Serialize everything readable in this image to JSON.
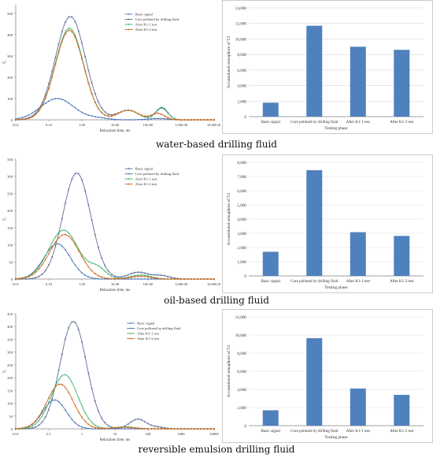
{
  "captions": [
    "water-based drilling fluid",
    "oil-based drilling fluid",
    "reversible emulsion drilling fluid"
  ],
  "colors": {
    "Basic signal": "#4a73b8",
    "Core polluted by drilling fluid": "#5a6f9a",
    "After K1-1 test": "#3cb371",
    "After K1-2 test": "#d2691e",
    "bar": "#4f81bd",
    "grid": "#d9d9d9"
  },
  "chart_data": [
    {
      "type": "line",
      "panel": "row1-left",
      "xlabel": "Relaxation time, ms",
      "ylabel": "T₂",
      "xscale": "log",
      "xlim": [
        0.01,
        10000
      ],
      "xticks": [
        "0.01",
        "0.10",
        "1.00",
        "10.00",
        "100.00",
        "1,000.00",
        "10,000.00"
      ],
      "yticks": [
        "0",
        "100",
        "200",
        "300",
        "400",
        "500"
      ],
      "ylim": [
        0,
        540
      ],
      "legend": "top-center",
      "series": [
        {
          "name": "Basic signal",
          "peaks": [
            {
              "x": 0.18,
              "y": 100,
              "w": 0.5
            },
            {
              "x": 3,
              "y": 8,
              "w": 0.3
            },
            {
              "x": 200,
              "y": 6,
              "w": 0.3
            }
          ]
        },
        {
          "name": "Core polluted by drilling fluid",
          "peaks": [
            {
              "x": 0.45,
              "y": 485,
              "w": 0.45
            },
            {
              "x": 25,
              "y": 45,
              "w": 0.32
            },
            {
              "x": 260,
              "y": 58,
              "w": 0.18
            }
          ]
        },
        {
          "name": "After K1-1 test",
          "peaks": [
            {
              "x": 0.42,
              "y": 430,
              "w": 0.43
            },
            {
              "x": 25,
              "y": 45,
              "w": 0.32
            },
            {
              "x": 260,
              "y": 55,
              "w": 0.18
            }
          ]
        },
        {
          "name": "After K1-2 test",
          "peaks": [
            {
              "x": 0.42,
              "y": 420,
              "w": 0.43
            },
            {
              "x": 25,
              "y": 45,
              "w": 0.32
            },
            {
              "x": 200,
              "y": 30,
              "w": 0.2
            }
          ]
        }
      ]
    },
    {
      "type": "bar",
      "panel": "row1-right",
      "xlabel": "Testing phase",
      "ylabel": "Accumulated semaphore of T2",
      "categories": [
        "Basic signal",
        "Core polluted by drilling fluid",
        "After K1-1 test",
        "After K1-2 test"
      ],
      "values": [
        1800,
        11700,
        9000,
        8600
      ],
      "ylim": [
        0,
        14000
      ],
      "yticks": [
        "0",
        "2,000",
        "4,000",
        "6,000",
        "8,000",
        "10,000",
        "12,000",
        "14,000"
      ]
    },
    {
      "type": "line",
      "panel": "row2-left",
      "xlabel": "Relaxation time, ms",
      "ylabel": "T₂",
      "xscale": "log",
      "xlim": [
        0.01,
        10000
      ],
      "xticks": [
        "0.01",
        "0.10",
        "1.00",
        "10.00",
        "100.00",
        "1,000.00",
        "10,000.00"
      ],
      "yticks": [
        "0",
        "50",
        "100",
        "150",
        "200",
        "250",
        "300",
        "350"
      ],
      "ylim": [
        0,
        350
      ],
      "legend": "top-center",
      "series": [
        {
          "name": "Basic signal",
          "peaks": [
            {
              "x": 0.18,
              "y": 103,
              "w": 0.4
            }
          ]
        },
        {
          "name": "Core polluted by drilling fluid",
          "peaks": [
            {
              "x": 0.7,
              "y": 310,
              "w": 0.42
            },
            {
              "x": 50,
              "y": 20,
              "w": 0.3
            },
            {
              "x": 250,
              "y": 10,
              "w": 0.25
            }
          ]
        },
        {
          "name": "After K1-1 test",
          "peaks": [
            {
              "x": 0.28,
              "y": 143,
              "w": 0.45
            },
            {
              "x": 3,
              "y": 30,
              "w": 0.25
            },
            {
              "x": 60,
              "y": 12,
              "w": 0.3
            }
          ]
        },
        {
          "name": "After K1-2 test",
          "peaks": [
            {
              "x": 0.3,
              "y": 130,
              "w": 0.45
            },
            {
              "x": 60,
              "y": 8,
              "w": 0.3
            }
          ]
        }
      ]
    },
    {
      "type": "bar",
      "panel": "row2-right",
      "xlabel": "Testing phase",
      "ylabel": "Accumulated semaphore of T2",
      "categories": [
        "Basic signal",
        "Core polluted by drilling fluid",
        "After K1-1 test",
        "After K1-2 test"
      ],
      "values": [
        1700,
        7450,
        3080,
        2820
      ],
      "ylim": [
        0,
        8000
      ],
      "yticks": [
        "0",
        "1,000",
        "2,000",
        "3,000",
        "4,000",
        "5,000",
        "6,000",
        "7,000",
        "8,000"
      ]
    },
    {
      "type": "line",
      "panel": "row3-left",
      "xlabel": "Relaxation time, ms",
      "ylabel": "T₂",
      "xscale": "log",
      "xlim": [
        0.01,
        10000
      ],
      "xticks": [
        "0.01",
        "0.1",
        "1",
        "10",
        "100",
        "1000",
        "10000"
      ],
      "yticks": [
        "0",
        "50",
        "100",
        "150",
        "200",
        "250",
        "300",
        "350",
        "400",
        "450"
      ],
      "ylim": [
        0,
        450
      ],
      "legend": "top-right",
      "series": [
        {
          "name": "Basic signal",
          "peaks": [
            {
              "x": 0.15,
              "y": 113,
              "w": 0.35
            }
          ]
        },
        {
          "name": "Core polluted by drilling fluid",
          "peaks": [
            {
              "x": 0.55,
              "y": 420,
              "w": 0.4
            },
            {
              "x": 50,
              "y": 38,
              "w": 0.25
            },
            {
              "x": 200,
              "y": 6,
              "w": 0.2
            }
          ]
        },
        {
          "name": "After K1-1 test",
          "peaks": [
            {
              "x": 0.3,
              "y": 212,
              "w": 0.4
            },
            {
              "x": 20,
              "y": 8,
              "w": 0.3
            }
          ]
        },
        {
          "name": "After K1-2 test",
          "peaks": [
            {
              "x": 0.22,
              "y": 175,
              "w": 0.4
            },
            {
              "x": 20,
              "y": 6,
              "w": 0.3
            }
          ]
        }
      ]
    },
    {
      "type": "bar",
      "panel": "row3-right",
      "xlabel": "Testing phase",
      "ylabel": "Accumulated semaphore of T2",
      "categories": [
        "Basic signal",
        "Core polluted by drilling fluid",
        "After K1-1 test",
        "After K1-2 test"
      ],
      "values": [
        1700,
        9650,
        4100,
        3400
      ],
      "ylim": [
        0,
        12000
      ],
      "yticks": [
        "0",
        "2,000",
        "4,000",
        "6,000",
        "8,000",
        "10,000",
        "12,000"
      ]
    }
  ]
}
